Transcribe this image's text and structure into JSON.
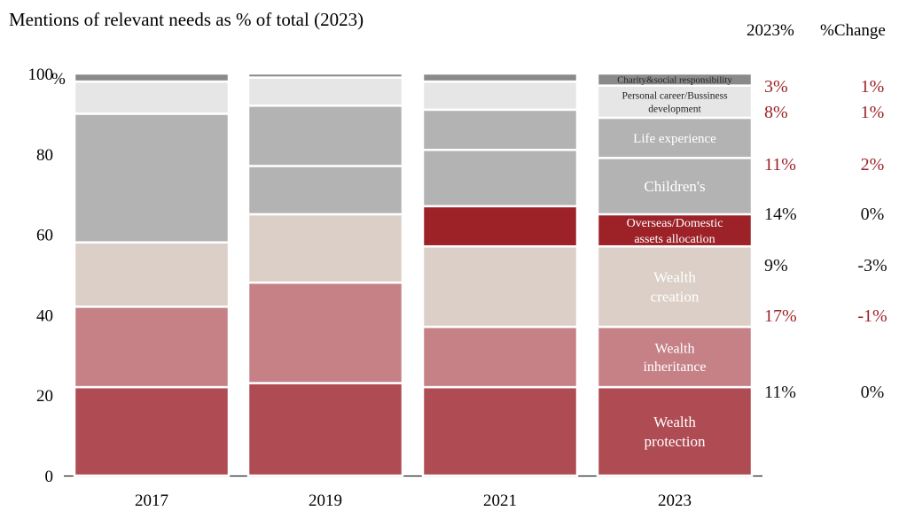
{
  "chart_data": {
    "type": "bar",
    "stacked": true,
    "title": "Mentions of relevant needs as % of total (2023)",
    "ylim": [
      0,
      100
    ],
    "yticks": [
      "0",
      "20",
      "40",
      "60",
      "80",
      "100"
    ],
    "ytick_suffix": "%",
    "categories": [
      "2017",
      "2019",
      "2021",
      "2023"
    ],
    "series": [
      {
        "key": "wealth_protection",
        "values": [
          22,
          23,
          22,
          22
        ],
        "color": "#ae4b53"
      },
      {
        "key": "wealth_inheritance",
        "values": [
          20,
          25,
          15,
          15
        ],
        "color": "#c68187"
      },
      {
        "key": "wealth_creation",
        "values": [
          16,
          17,
          20,
          20
        ],
        "color": "#dbcfc7"
      },
      {
        "key": "overseas_domestic",
        "values": [
          0,
          0,
          10,
          8
        ],
        "color": "#9c2228"
      },
      {
        "key": "childrens",
        "values": [
          0,
          12,
          14,
          14
        ],
        "color": "#b3b3b3"
      },
      {
        "key": "life_experience",
        "values": [
          32,
          15,
          10,
          10
        ],
        "color": "#b3b3b3"
      },
      {
        "key": "personal_career",
        "values": [
          8,
          7,
          7,
          8
        ],
        "color": "#e6e6e6"
      },
      {
        "key": "charity",
        "values": [
          2,
          1,
          2,
          3
        ],
        "color": "#8a8a8a"
      }
    ],
    "segment_labels_2023": {
      "charity": "Charity&social responsibility",
      "personal_career": [
        "Personal career/Bussiness",
        "development"
      ],
      "life_experience": "Life experience",
      "childrens": "Children's",
      "overseas_domestic": [
        "Overseas/Domestic",
        "assets allocation"
      ],
      "wealth_creation": [
        "Wealth",
        "creation"
      ],
      "wealth_inheritance": [
        "Wealth",
        "inheritance"
      ],
      "wealth_protection": [
        "Wealth",
        "protection"
      ]
    },
    "table": {
      "header_share": "2023%",
      "header_change": "%Change",
      "rows": [
        {
          "share": "3%",
          "change": "1%",
          "share_color": "#9c2228",
          "change_color": "#9c2228"
        },
        {
          "share": "8%",
          "change": "1%",
          "share_color": "#9c2228",
          "change_color": "#9c2228"
        },
        {
          "share": "11%",
          "change": "2%",
          "share_color": "#9c2228",
          "change_color": "#9c2228"
        },
        {
          "share": "14%",
          "change": "0%",
          "share_color": "#111111",
          "change_color": "#111111"
        },
        {
          "share": "9%",
          "change": "-3%",
          "share_color": "#111111",
          "change_color": "#111111"
        },
        {
          "share": "17%",
          "change": "-1%",
          "share_color": "#9c2228",
          "change_color": "#9c2228"
        },
        {
          "share": "11%",
          "change": "0%",
          "share_color": "#111111",
          "change_color": "#111111"
        }
      ]
    }
  }
}
